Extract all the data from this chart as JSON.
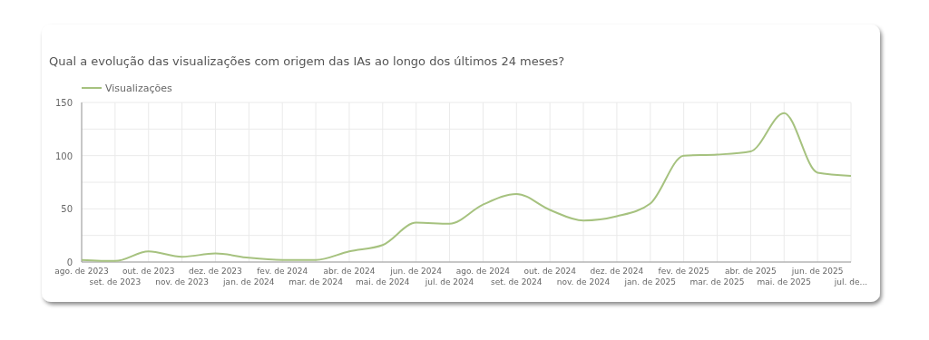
{
  "chart_data": {
    "type": "line",
    "title": "Qual a evolução das visualizações com origem das IAs ao longo dos últimos 24 meses?",
    "categories": [
      "ago. de 2023",
      "set. de 2023",
      "out. de 2023",
      "nov. de 2023",
      "dez. de 2023",
      "jan. de 2024",
      "fev. de 2024",
      "mar. de 2024",
      "abr. de 2024",
      "mai. de 2024",
      "jun. de 2024",
      "jul. de 2024",
      "ago. de 2024",
      "set. de 2024",
      "out. de 2024",
      "nov. de 2024",
      "dez. de 2024",
      "jan. de 2025",
      "fev. de 2025",
      "mar. de 2025",
      "abr. de 2025",
      "mai. de 2025",
      "jun. de 2025",
      "jul. de..."
    ],
    "series": [
      {
        "name": "Visualizações",
        "color": "#a6c27f",
        "values": [
          2,
          1,
          10,
          5,
          8,
          4,
          2,
          2,
          10,
          16,
          37,
          36,
          54,
          64,
          49,
          39,
          43,
          55,
          100,
          101,
          104,
          140,
          84,
          81
        ]
      }
    ],
    "ylim": [
      0,
      150
    ],
    "yticks": [
      0,
      {
        "value": 25,
        "label": null
      },
      50,
      {
        "value": 75,
        "label": null
      },
      100,
      {
        "value": 125,
        "label": null
      },
      150
    ],
    "grid": true,
    "legend": "top left",
    "marker": "none",
    "line_style": "solid"
  }
}
